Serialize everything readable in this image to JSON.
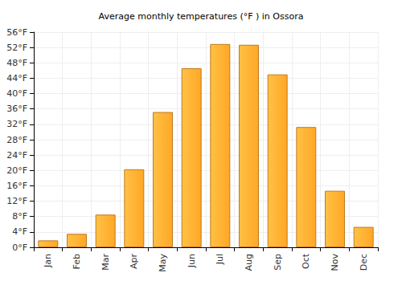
{
  "chart_data": {
    "type": "bar",
    "title": "Average monthly temperatures (°F ) in Ossora",
    "categories": [
      "Jan",
      "Feb",
      "Mar",
      "Apr",
      "May",
      "Jun",
      "Jul",
      "Aug",
      "Sep",
      "Oct",
      "Nov",
      "Dec"
    ],
    "values": [
      1.8,
      3.5,
      8.5,
      20.3,
      35.2,
      46.6,
      52.9,
      52.7,
      45.0,
      31.3,
      14.7,
      5.3
    ],
    "color": "#ffa726",
    "ylim": [
      0,
      56
    ],
    "yticks": [
      {
        "value": 0,
        "label": "0°F"
      },
      {
        "value": 4,
        "label": "4°F"
      },
      {
        "value": 8,
        "label": "8°F"
      },
      {
        "value": 12,
        "label": "12°F"
      },
      {
        "value": 16,
        "label": "16°F"
      },
      {
        "value": 20,
        "label": "20°F"
      },
      {
        "value": 24,
        "label": "24°F"
      },
      {
        "value": 28,
        "label": "28°F"
      },
      {
        "value": 32,
        "label": "32°F"
      },
      {
        "value": 36,
        "label": "36°F"
      },
      {
        "value": 40,
        "label": "40°F"
      },
      {
        "value": 44,
        "label": "44°F"
      },
      {
        "value": 48,
        "label": "48°F"
      },
      {
        "value": 52,
        "label": "52°F"
      },
      {
        "value": 56,
        "label": "56°F"
      }
    ],
    "grid": true
  }
}
